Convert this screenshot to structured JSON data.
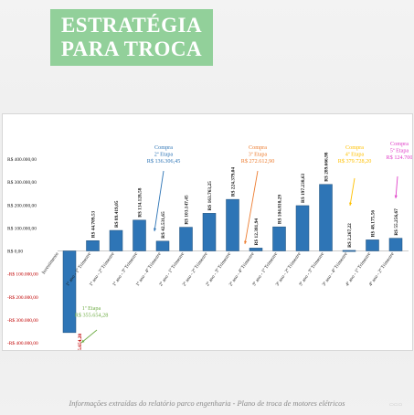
{
  "header": {
    "title_line1": "ESTRATÉGIA",
    "title_line2": "PARA TROCA"
  },
  "footer": {
    "caption": "Informações extraídas do relatório parco engenharia - Plano de troca de motores elétricos"
  },
  "chart_data": {
    "type": "bar",
    "categories": [
      "Investimento",
      "1º ano - 1º Trimestre",
      "1º ano - 2º Trimestre",
      "1º ano - 3º Trimestre",
      "1º ano - 4º Trimestre",
      "2º ano - 1º Trimestre",
      "2º ano - 2º Trimestre",
      "2º ano - 3º Trimestre",
      "2º ano - 4º Trimestre",
      "3º ano - 1º Trimestre",
      "3º ano - 2º Trimestre",
      "3º ano - 3º Trimestre",
      "3º ano - 4º Trimestre",
      "4º ano - 1º Trimestre",
      "4º ano - 2º Trimestre"
    ],
    "values": [
      -355654.28,
      44709.53,
      89419.05,
      134128.58,
      42531.65,
      103147.45,
      163763.25,
      224379.04,
      12381.94,
      104810.29,
      197238.63,
      289666.98,
      2267.22,
      48175.56,
      55256.67
    ],
    "value_labels": [
      "R$ 355.654,28",
      "R$ 44.709,53",
      "R$ 89.419,05",
      "R$ 134.128,58",
      "R$ 42.531,65",
      "R$ 103.147,45",
      "R$ 163.763,25",
      "R$ 224.379,04",
      "R$ 12.381,94",
      "R$ 104.810,29",
      "R$ 197.238,63",
      "R$ 289.666,98",
      "R$ 2.267,22",
      "R$ 48.175,56",
      "R$ 55.256,67"
    ],
    "ylim": [
      -400000,
      400000
    ],
    "yticks": [
      {
        "value": 400000,
        "label": "R$ 400.000,00"
      },
      {
        "value": 300000,
        "label": "R$ 300.000,00"
      },
      {
        "value": 200000,
        "label": "R$ 200.000,00"
      },
      {
        "value": 100000,
        "label": "R$ 100.000,00"
      },
      {
        "value": 0,
        "label": "R$ 0,00"
      },
      {
        "value": -100000,
        "label": "-R$ 100.000,00"
      },
      {
        "value": -200000,
        "label": "-R$ 200.000,00"
      },
      {
        "value": -300000,
        "label": "-R$ 300.000,00"
      },
      {
        "value": -400000,
        "label": "-R$ 400.000,00"
      }
    ],
    "grid": false,
    "bar_color": "#2e75b6",
    "annotations": [
      {
        "lines": [
          "1ª Etapa",
          "R$ 355.654,28"
        ],
        "color": "#70ad47",
        "anchor_index": 0
      },
      {
        "lines": [
          "Compra",
          "2ª Etapa",
          "R$ 136.306,45"
        ],
        "color": "#2e75b6",
        "anchor_index": 4
      },
      {
        "lines": [
          "Compra",
          "3ª Etapa",
          "R$ 272.612,90"
        ],
        "color": "#ed7d31",
        "anchor_index": 8
      },
      {
        "lines": [
          "Compra",
          "4ª Etapa",
          "R$ 379.728,20"
        ],
        "color": "#ffc000",
        "anchor_index": 12
      },
      {
        "lines": [
          "Compra",
          "5ª Etapa",
          "R$ 124.700"
        ],
        "color": "#e040c8",
        "anchor_index": 14
      }
    ]
  }
}
